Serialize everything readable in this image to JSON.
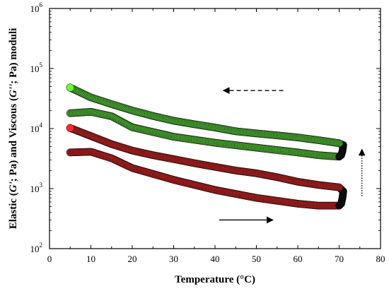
{
  "chart_data": {
    "type": "scatter",
    "xlabel": "Temperature (°C)",
    "ylabel_parts": [
      "Elastic (",
      "G'",
      "; Pa) and Viscous (",
      "G''",
      "; Pa) moduli"
    ],
    "xlim": [
      0,
      80
    ],
    "ylim": [
      100,
      1000000
    ],
    "yscale": "log",
    "x_ticks": [
      "0",
      "10",
      "20",
      "30",
      "40",
      "50",
      "60",
      "70",
      "80"
    ],
    "y_tick_bases": [
      "10",
      "10",
      "10",
      "10",
      "10"
    ],
    "y_tick_exps": [
      "2",
      "3",
      "4",
      "5",
      "6"
    ],
    "grid": false,
    "colors": {
      "green": "#4caf34",
      "green_start": "#66ff33",
      "red": "#b22222",
      "red_start": "#ff2a2a",
      "outline": "#000000"
    },
    "series": [
      {
        "color": "green",
        "x": [
          5,
          10,
          15,
          20,
          30,
          40,
          50,
          60,
          65,
          70,
          70.5,
          70.8,
          71,
          70,
          65,
          60,
          55,
          50,
          45,
          40,
          35,
          30,
          25,
          20,
          15,
          10,
          5
        ],
        "y": [
          18000,
          19000,
          16000,
          10500,
          7300,
          5800,
          4800,
          4000,
          3600,
          3400,
          3600,
          4200,
          5300,
          5700,
          6400,
          7100,
          7700,
          8300,
          9000,
          10400,
          11800,
          13500,
          16200,
          20000,
          25500,
          33000,
          48000
        ]
      },
      {
        "color": "red",
        "x": [
          5,
          10,
          15,
          20,
          30,
          40,
          50,
          60,
          65,
          70,
          70.5,
          70.8,
          71,
          70,
          65,
          60,
          55,
          50,
          45,
          40,
          35,
          30,
          25,
          20,
          15,
          10,
          5
        ],
        "y": [
          4000,
          4100,
          3200,
          2200,
          1400,
          950,
          700,
          560,
          520,
          520,
          560,
          700,
          900,
          1050,
          1150,
          1300,
          1550,
          1800,
          2000,
          2300,
          2650,
          3100,
          3600,
          4300,
          5500,
          7500,
          10200
        ]
      }
    ],
    "annotations": [
      {
        "type": "arrow",
        "direction": "left",
        "style": "dashed",
        "x": [
          56.5,
          42
        ],
        "y": [
          43000,
          43000
        ]
      },
      {
        "type": "arrow",
        "direction": "right",
        "style": "solid",
        "x": [
          41,
          54
        ],
        "y": [
          300,
          300
        ]
      },
      {
        "type": "arrow",
        "direction": "up",
        "style": "dotted",
        "x": [
          75.5,
          75.5
        ],
        "y": [
          750,
          4500
        ]
      }
    ]
  }
}
